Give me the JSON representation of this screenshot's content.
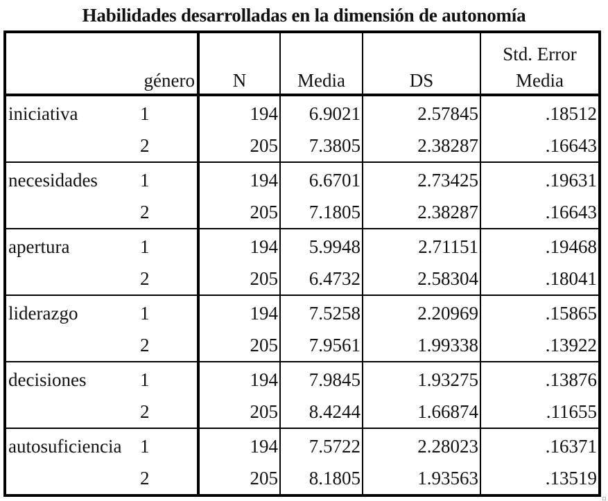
{
  "title": "Habilidades desarrolladas en la dimensión de autonomía",
  "table": {
    "headers": {
      "variable": "",
      "genero": "género",
      "n": "N",
      "media": "Media",
      "ds": "DS",
      "se_line1": "Std. Error",
      "se_line2": "Media"
    },
    "groups": [
      {
        "name": "iniciativa",
        "rows": [
          {
            "genero": "1",
            "n": "194",
            "media": "6.9021",
            "ds": "2.57845",
            "se": ".18512"
          },
          {
            "genero": "2",
            "n": "205",
            "media": "7.3805",
            "ds": "2.38287",
            "se": ".16643"
          }
        ]
      },
      {
        "name": "necesidades",
        "rows": [
          {
            "genero": "1",
            "n": "194",
            "media": "6.6701",
            "ds": "2.73425",
            "se": ".19631"
          },
          {
            "genero": "2",
            "n": "205",
            "media": "7.1805",
            "ds": "2.38287",
            "se": ".16643"
          }
        ]
      },
      {
        "name": "apertura",
        "rows": [
          {
            "genero": "1",
            "n": "194",
            "media": "5.9948",
            "ds": "2.71151",
            "se": ".19468"
          },
          {
            "genero": "2",
            "n": "205",
            "media": "6.4732",
            "ds": "2.58304",
            "se": ".18041"
          }
        ]
      },
      {
        "name": "liderazgo",
        "rows": [
          {
            "genero": "1",
            "n": "194",
            "media": "7.5258",
            "ds": "2.20969",
            "se": ".15865"
          },
          {
            "genero": "2",
            "n": "205",
            "media": "7.9561",
            "ds": "1.99338",
            "se": ".13922"
          }
        ]
      },
      {
        "name": "decisiones",
        "rows": [
          {
            "genero": "1",
            "n": "194",
            "media": "7.9845",
            "ds": "1.93275",
            "se": ".13876"
          },
          {
            "genero": "2",
            "n": "205",
            "media": "8.4244",
            "ds": "1.66874",
            "se": ".11655"
          }
        ]
      },
      {
        "name": "autosuficiencia",
        "rows": [
          {
            "genero": "1",
            "n": "194",
            "media": "7.5722",
            "ds": "2.28023",
            "se": ".16371"
          },
          {
            "genero": "2",
            "n": "205",
            "media": "8.1805",
            "ds": "1.93563",
            "se": ".13519"
          }
        ]
      }
    ]
  }
}
